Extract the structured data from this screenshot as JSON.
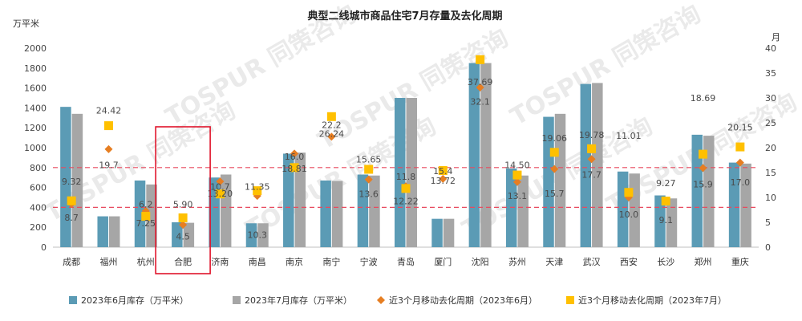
{
  "chart_data": {
    "type": "bar",
    "title": "典型二线城市商品住宅7月存量及去化周期",
    "ylabel_left": "万平米",
    "ylabel_right": "月",
    "ylim_left": [
      0,
      2000
    ],
    "ylim_right": [
      0,
      40
    ],
    "left_ticks": [
      "0",
      "200",
      "400",
      "600",
      "800",
      "1000",
      "1200",
      "1400",
      "1600",
      "1800",
      "2000"
    ],
    "right_ticks": [
      "0",
      "5",
      "10",
      "15",
      "20",
      "25",
      "30",
      "35",
      "40"
    ],
    "categories": [
      "成都",
      "福州",
      "杭州",
      "合肥",
      "济南",
      "南昌",
      "南京",
      "南宁",
      "宁波",
      "青岛",
      "厦门",
      "沈阳",
      "苏州",
      "天津",
      "武汉",
      "西安",
      "长沙",
      "郑州",
      "重庆"
    ],
    "highlight_category": "合肥",
    "reference_lines_right_axis": [
      16,
      8
    ],
    "series": [
      {
        "name": "2023年6月库存（万平米）",
        "type": "bar",
        "axis": "left",
        "color": "#5b9bb5",
        "values": [
          1410,
          310,
          670,
          250,
          700,
          240,
          940,
          670,
          730,
          1500,
          285,
          1850,
          790,
          1310,
          1640,
          760,
          520,
          1130,
          850
        ]
      },
      {
        "name": "2023年7月库存（万平米）",
        "type": "bar",
        "axis": "left",
        "color": "#a6a6a6",
        "values": [
          1340,
          310,
          630,
          245,
          730,
          240,
          950,
          665,
          720,
          1500,
          285,
          1850,
          720,
          1340,
          1650,
          740,
          490,
          1120,
          840
        ]
      },
      {
        "name": "近3个月移动去化周期（2023年6月）",
        "type": "scatter",
        "axis": "right",
        "color": "#e67e22",
        "marker": "diamond",
        "values": [
          8.7,
          19.7,
          7.25,
          4.5,
          13.2,
          10.3,
          18.81,
          22.2,
          13.6,
          12.22,
          13.72,
          32.1,
          13.1,
          15.7,
          17.7,
          10.0,
          9.1,
          15.9,
          17.0
        ]
      },
      {
        "name": "近3个月移动去化周期（2023年7月）",
        "type": "scatter",
        "axis": "right",
        "color": "#ffc000",
        "marker": "square",
        "values": [
          9.32,
          24.42,
          6.2,
          5.9,
          10.7,
          11.35,
          16.0,
          26.24,
          15.65,
          11.8,
          15.4,
          37.69,
          14.5,
          19.06,
          19.78,
          11.01,
          9.27,
          18.69,
          20.15
        ]
      }
    ],
    "data_labels": [
      {
        "text": "9.32",
        "cat": 0,
        "val": 13.2
      },
      {
        "text": "8.7",
        "cat": 0,
        "val": 6.0
      },
      {
        "text": "24.42",
        "cat": 1,
        "val": 27.5
      },
      {
        "text": "19.7",
        "cat": 1,
        "val": 16.5
      },
      {
        "text": "6.2",
        "cat": 2,
        "val": 8.6
      },
      {
        "text": "7.25",
        "cat": 2,
        "val": 4.8
      },
      {
        "text": "5.90",
        "cat": 3,
        "val": 8.6
      },
      {
        "text": "4.5",
        "cat": 3,
        "val": 2.2
      },
      {
        "text": "10.7",
        "cat": 4,
        "val": 12.2
      },
      {
        "text": "13.20",
        "cat": 4,
        "val": 10.8
      },
      {
        "text": "11.35",
        "cat": 5,
        "val": 12.2
      },
      {
        "text": "10.3",
        "cat": 5,
        "val": 2.5
      },
      {
        "text": "16.0",
        "cat": 6,
        "val": 18.2
      },
      {
        "text": "18.81",
        "cat": 6,
        "val": 15.8
      },
      {
        "text": "22.2",
        "cat": 7,
        "val": 24.6
      },
      {
        "text": "26.24",
        "cat": 7,
        "val": 22.8
      },
      {
        "text": "15.65",
        "cat": 8,
        "val": 17.7
      },
      {
        "text": "13.6",
        "cat": 8,
        "val": 10.7
      },
      {
        "text": "11.8",
        "cat": 9,
        "val": 14.2
      },
      {
        "text": "12.22",
        "cat": 9,
        "val": 9.3
      },
      {
        "text": "15.4",
        "cat": 10,
        "val": 15.3
      },
      {
        "text": "13.72",
        "cat": 10,
        "val": 13.4
      },
      {
        "text": "37.69",
        "cat": 11,
        "val": 33.2
      },
      {
        "text": "32.1",
        "cat": 11,
        "val": 29.3
      },
      {
        "text": "14.50",
        "cat": 12,
        "val": 16.5
      },
      {
        "text": "13.1",
        "cat": 12,
        "val": 10.3
      },
      {
        "text": "19.06",
        "cat": 13,
        "val": 21.9
      },
      {
        "text": "15.7",
        "cat": 13,
        "val": 10.8
      },
      {
        "text": "19.78",
        "cat": 14,
        "val": 22.6
      },
      {
        "text": "17.7",
        "cat": 14,
        "val": 14.6
      },
      {
        "text": "11.01",
        "cat": 15,
        "val": 22.4
      },
      {
        "text": "10.0",
        "cat": 15,
        "val": 6.6
      },
      {
        "text": "9.27",
        "cat": 16,
        "val": 12.9
      },
      {
        "text": "9.1",
        "cat": 16,
        "val": 5.5
      },
      {
        "text": "18.69",
        "cat": 17,
        "val": 30.0
      },
      {
        "text": "15.9",
        "cat": 17,
        "val": 12.7
      },
      {
        "text": "20.15",
        "cat": 18,
        "val": 24.1
      },
      {
        "text": "17.0",
        "cat": 18,
        "val": 13.1
      }
    ],
    "watermark": "TOSPUR 同策咨询"
  }
}
